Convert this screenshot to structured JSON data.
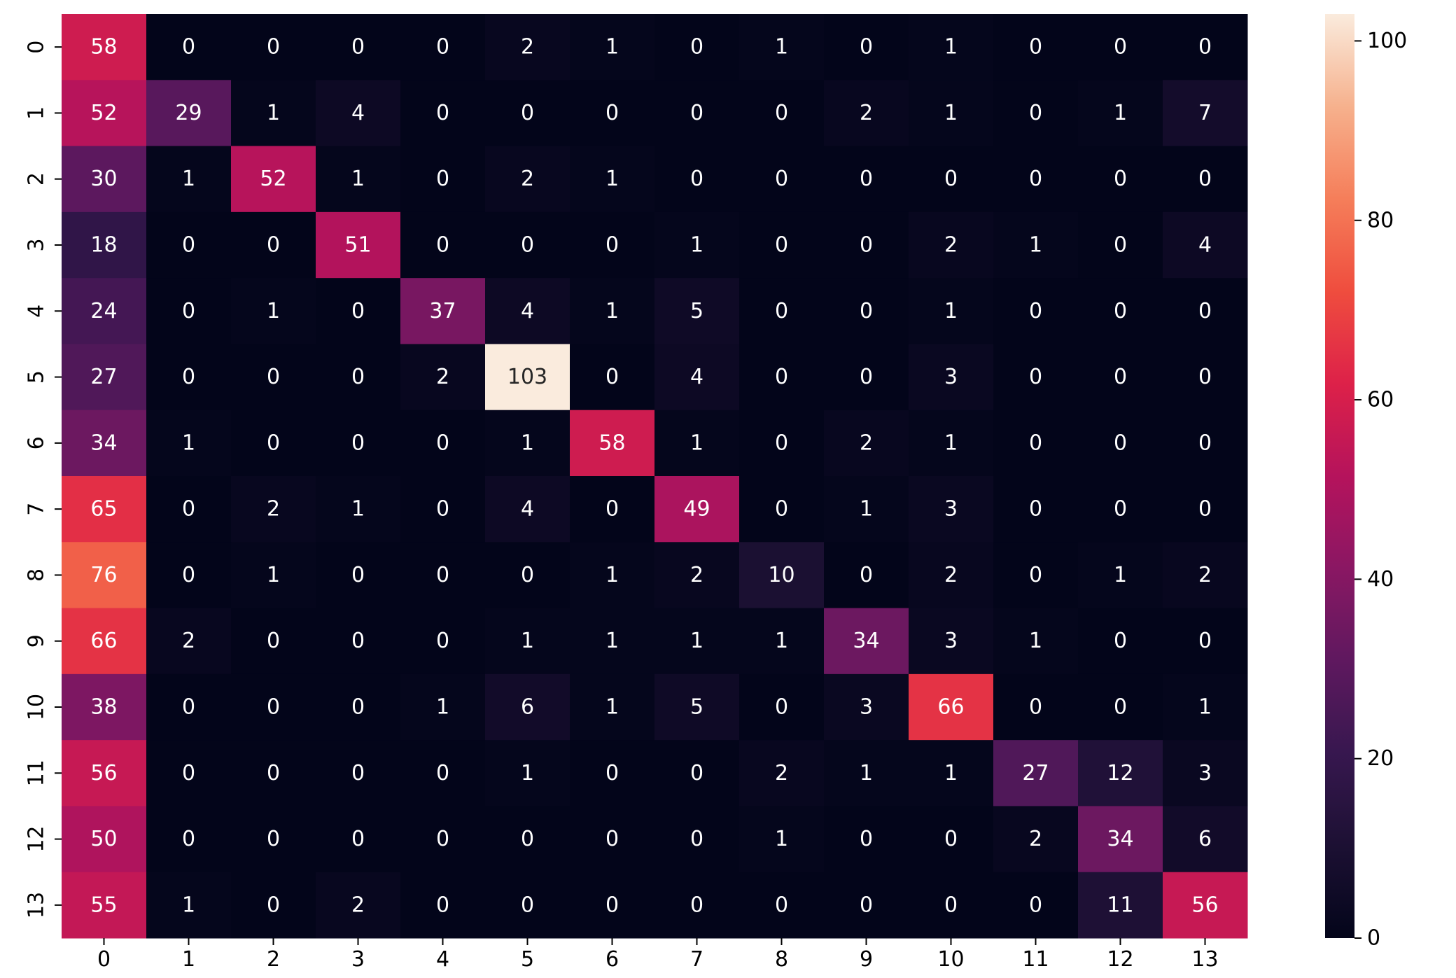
{
  "chart_data": {
    "type": "heatmap",
    "title": "",
    "xlabel": "",
    "ylabel": "",
    "x_categories": [
      "0",
      "1",
      "2",
      "3",
      "4",
      "5",
      "6",
      "7",
      "8",
      "9",
      "10",
      "11",
      "12",
      "13"
    ],
    "y_categories": [
      "0",
      "1",
      "2",
      "3",
      "4",
      "5",
      "6",
      "7",
      "8",
      "9",
      "10",
      "11",
      "12",
      "13"
    ],
    "values": [
      [
        58,
        0,
        0,
        0,
        0,
        2,
        1,
        0,
        1,
        0,
        1,
        0,
        0,
        0
      ],
      [
        52,
        29,
        1,
        4,
        0,
        0,
        0,
        0,
        0,
        2,
        1,
        0,
        1,
        7
      ],
      [
        30,
        1,
        52,
        1,
        0,
        2,
        1,
        0,
        0,
        0,
        0,
        0,
        0,
        0
      ],
      [
        18,
        0,
        0,
        51,
        0,
        0,
        0,
        1,
        0,
        0,
        2,
        1,
        0,
        4
      ],
      [
        24,
        0,
        1,
        0,
        37,
        4,
        1,
        5,
        0,
        0,
        1,
        0,
        0,
        0
      ],
      [
        27,
        0,
        0,
        0,
        2,
        103,
        0,
        4,
        0,
        0,
        3,
        0,
        0,
        0
      ],
      [
        34,
        1,
        0,
        0,
        0,
        1,
        58,
        1,
        0,
        2,
        1,
        0,
        0,
        0
      ],
      [
        65,
        0,
        2,
        1,
        0,
        4,
        0,
        49,
        0,
        1,
        3,
        0,
        0,
        0
      ],
      [
        76,
        0,
        1,
        0,
        0,
        0,
        1,
        2,
        10,
        0,
        2,
        0,
        1,
        2
      ],
      [
        66,
        2,
        0,
        0,
        0,
        1,
        1,
        1,
        1,
        34,
        3,
        1,
        0,
        0
      ],
      [
        38,
        0,
        0,
        0,
        1,
        6,
        1,
        5,
        0,
        3,
        66,
        0,
        0,
        1
      ],
      [
        56,
        0,
        0,
        0,
        0,
        1,
        0,
        0,
        2,
        1,
        1,
        27,
        12,
        3
      ],
      [
        50,
        0,
        0,
        0,
        0,
        0,
        0,
        0,
        1,
        0,
        0,
        2,
        34,
        6
      ],
      [
        55,
        1,
        0,
        2,
        0,
        0,
        0,
        0,
        0,
        0,
        0,
        0,
        11,
        56
      ]
    ],
    "vmin": 0,
    "vmax": 103,
    "colormap": "rocket",
    "colorbar": {
      "ticks": [
        0,
        20,
        40,
        60,
        80,
        100
      ]
    },
    "annotations": true,
    "grid": false
  }
}
